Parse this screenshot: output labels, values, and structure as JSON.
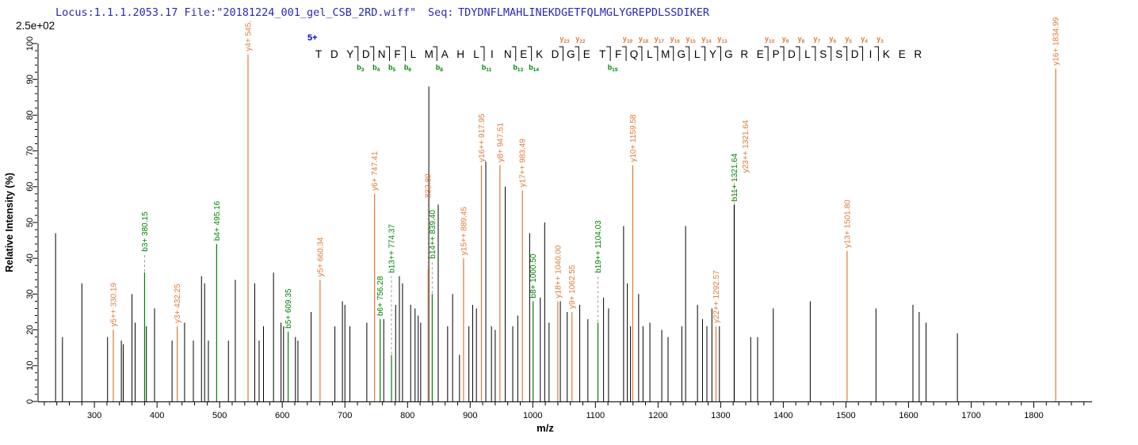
{
  "header": {
    "locus_file": "Locus:1.1.1.2053.17 File:\"20181224_001_gel_CSB_2RD.wiff\"",
    "seq_label": "Seq:",
    "sequence": "TDYDNFLMAHLINEKDGETFQLMGLYGREPDLSSDIKER"
  },
  "colors": {
    "header_text": "#2a2ab8",
    "sequence_text": "#2a2ab8",
    "charge_text": "#0000d0",
    "y_ion": "#dd7a36",
    "b_ion": "#008000",
    "peak_black": "#000000",
    "axis": "#000000",
    "leader_b": "#9b9b9b",
    "leader_y": "#e2a070"
  },
  "chart_data": {
    "type": "bar",
    "title": "",
    "xlabel": "m/z",
    "ylabel": "Relative  Intensity (%)",
    "intensity_scale": "2.5e+02",
    "xlim": [
      210,
      1893
    ],
    "ylim": [
      0,
      100
    ],
    "x_major_ticks": [
      300,
      400,
      500,
      600,
      700,
      800,
      900,
      1000,
      1100,
      1200,
      1300,
      1400,
      1500,
      1600,
      1700,
      1800
    ],
    "x_minor_step": 20,
    "y_major_ticks": [
      0,
      10,
      20,
      30,
      40,
      50,
      60,
      70,
      80,
      90,
      100
    ],
    "y_minor_step": 2,
    "grid": false,
    "legend": "none",
    "peptide": {
      "charge_label": "5+",
      "residues": "TDYDNFLMAHLINEKDGETFQLMGLYGREPDLSSDIKER",
      "b_markers": [
        3,
        4,
        5,
        6,
        8,
        11,
        13,
        14,
        19
      ],
      "y_markers": [
        23,
        22,
        19,
        18,
        17,
        16,
        15,
        14,
        13,
        10,
        9,
        8,
        7,
        6,
        5,
        4,
        3
      ]
    },
    "labeled_peaks": [
      {
        "series": "y",
        "label": "y5++ 330.19",
        "mz": 330.19,
        "intensity": 20
      },
      {
        "series": "b",
        "label": "b3+ 380.15",
        "mz": 380.15,
        "intensity": 36,
        "label_at": 41
      },
      {
        "series": "y",
        "label": "y3+ 432.25",
        "mz": 432.25,
        "intensity": 21
      },
      {
        "series": "b",
        "label": "b4+ 495.16",
        "mz": 495.16,
        "intensity": 44
      },
      {
        "series": "y",
        "label": "y4+ 545.",
        "mz": 545.3,
        "intensity": 97
      },
      {
        "series": "b",
        "label": "b5+ 609.35",
        "mz": 609.35,
        "intensity": 19.5
      },
      {
        "series": "y",
        "label": "y5+ 660.34",
        "mz": 660.34,
        "intensity": 34
      },
      {
        "series": "y",
        "label": "y6+ 747.41",
        "mz": 747.41,
        "intensity": 58
      },
      {
        "series": "b",
        "label": "b6+ 756.28",
        "mz": 756.28,
        "intensity": 23
      },
      {
        "series": "b",
        "label": "b13++ 774.37",
        "mz": 774.37,
        "intensity": 13,
        "label_at": 35
      },
      {
        "series": "y",
        "label": "832.89",
        "mz": 832.89,
        "intensity": 37,
        "label_at": 56
      },
      {
        "series": "b",
        "label": "b14++ 839.40",
        "mz": 839.4,
        "intensity": 30,
        "label_at": 39
      },
      {
        "series": "y",
        "label": "y15++ 889.45",
        "mz": 889.45,
        "intensity": 40
      },
      {
        "series": "y",
        "label": "y16++ 917.95",
        "mz": 917.95,
        "intensity": 66
      },
      {
        "series": "y",
        "label": "y8+ 947.51",
        "mz": 947.51,
        "intensity": 66
      },
      {
        "series": "y",
        "label": "y17++ 983.49",
        "mz": 983.49,
        "intensity": 59
      },
      {
        "series": "b",
        "label": "b8+ 1000.50",
        "mz": 1000.5,
        "intensity": 28
      },
      {
        "series": "y",
        "label": "y18++ 1040.00",
        "mz": 1040.0,
        "intensity": 28
      },
      {
        "series": "y",
        "label": "y9+ 1062.55",
        "mz": 1062.55,
        "intensity": 25
      },
      {
        "series": "b",
        "label": "b19++ 1104.03",
        "mz": 1104.03,
        "intensity": 22,
        "label_at": 35
      },
      {
        "series": "y",
        "label": "y10+ 1159.58",
        "mz": 1159.58,
        "intensity": 66
      },
      {
        "series": "y",
        "label": "y22++ 1292.57",
        "mz": 1292.57,
        "intensity": 21
      },
      {
        "series": "b",
        "label": "b11+ 1321.64",
        "mz": 1321.64,
        "intensity": 55,
        "peak_color": "black"
      },
      {
        "series": "y",
        "label": "y23++ 1321.64",
        "mz": 1321.64,
        "intensity": 55,
        "label_at": 63,
        "dx": 14,
        "no_peak": true
      },
      {
        "series": "y",
        "label": "y13+ 1501.80",
        "mz": 1501.8,
        "intensity": 42
      },
      {
        "series": "y",
        "label": "y16+ 1834.99",
        "mz": 1834.99,
        "intensity": 93
      }
    ],
    "unlabeled_peaks": [
      [
        238,
        47
      ],
      [
        249,
        18
      ],
      [
        280,
        33
      ],
      [
        321,
        18
      ],
      [
        343,
        17
      ],
      [
        346,
        16
      ],
      [
        360,
        30
      ],
      [
        365,
        22
      ],
      [
        383,
        21
      ],
      [
        396,
        26
      ],
      [
        424,
        17
      ],
      [
        444,
        22
      ],
      [
        458,
        17
      ],
      [
        471,
        35
      ],
      [
        476,
        33
      ],
      [
        482,
        17
      ],
      [
        514,
        17
      ],
      [
        525,
        34
      ],
      [
        556,
        33
      ],
      [
        563,
        17
      ],
      [
        570,
        21
      ],
      [
        586,
        36
      ],
      [
        598,
        22
      ],
      [
        602,
        21
      ],
      [
        621,
        18
      ],
      [
        625,
        17
      ],
      [
        646,
        25
      ],
      [
        684,
        21
      ],
      [
        696,
        28
      ],
      [
        700,
        27
      ],
      [
        708,
        21
      ],
      [
        735,
        22
      ],
      [
        762,
        23
      ],
      [
        781,
        27
      ],
      [
        787,
        35
      ],
      [
        792,
        33
      ],
      [
        805,
        27
      ],
      [
        812,
        26
      ],
      [
        817,
        24
      ],
      [
        821,
        22
      ],
      [
        834,
        88
      ],
      [
        849,
        55
      ],
      [
        864,
        21
      ],
      [
        872,
        30
      ],
      [
        883,
        13
      ],
      [
        898,
        21
      ],
      [
        904,
        27
      ],
      [
        910,
        26
      ],
      [
        925,
        67
      ],
      [
        934,
        21
      ],
      [
        940,
        20
      ],
      [
        956,
        60
      ],
      [
        968,
        21
      ],
      [
        976,
        24
      ],
      [
        995,
        47
      ],
      [
        1012,
        29
      ],
      [
        1019,
        50
      ],
      [
        1026,
        22
      ],
      [
        1044,
        28
      ],
      [
        1055,
        25
      ],
      [
        1075,
        27
      ],
      [
        1088,
        23
      ],
      [
        1113,
        29
      ],
      [
        1121,
        26
      ],
      [
        1145,
        49
      ],
      [
        1151,
        33
      ],
      [
        1156,
        21
      ],
      [
        1169,
        30
      ],
      [
        1176,
        21
      ],
      [
        1187,
        22
      ],
      [
        1206,
        20
      ],
      [
        1216,
        18
      ],
      [
        1238,
        21
      ],
      [
        1244,
        49
      ],
      [
        1263,
        27
      ],
      [
        1271,
        23
      ],
      [
        1278,
        21
      ],
      [
        1286,
        26
      ],
      [
        1298,
        21
      ],
      [
        1348,
        18
      ],
      [
        1359,
        18
      ],
      [
        1384,
        26
      ],
      [
        1443,
        28
      ],
      [
        1548,
        26
      ],
      [
        1607,
        27
      ],
      [
        1617,
        25
      ],
      [
        1628,
        22
      ],
      [
        1678,
        19
      ]
    ]
  }
}
